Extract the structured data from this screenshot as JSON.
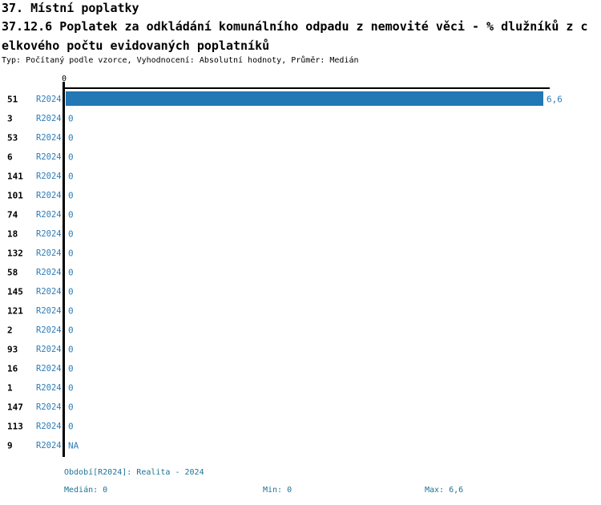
{
  "header": {
    "subtitle_lines": [
      "37.12.6 Poplatek za odkládání komunálního odpadu z nemovité věci - % dlužníků z c",
      "elkového počtu evidovaných poplatníků"
    ]
  },
  "footer": {
    "period_text": "Období[R2024]: Realita - 2024",
    "median_text": "Medián: 0",
    "min_text": "Min: 0",
    "max_text": "Max: 6,6"
  },
  "colors": {
    "bar": "#2277b5",
    "value_text": "#2e7cb8",
    "footer_text": "#1f7396",
    "axis": "#000000"
  },
  "chart_data": {
    "type": "bar",
    "orientation": "horizontal",
    "title": "37. Místní poplatky",
    "subtitle": "37.12.6 Poplatek za odkládání komunálního odpadu z nemovité věci - % dlužníků z celkového počtu evidovaných poplatníků",
    "meta": "Typ: Počítaný podle vzorce, Vyhodnocení: Absolutní hodnoty, Průměr: Medián",
    "categories": [
      "51",
      "3",
      "53",
      "6",
      "141",
      "101",
      "74",
      "18",
      "132",
      "58",
      "145",
      "121",
      "2",
      "93",
      "16",
      "1",
      "147",
      "113",
      "9"
    ],
    "series": [
      {
        "name": "R2024",
        "values": [
          6.6,
          0,
          0,
          0,
          0,
          0,
          0,
          0,
          0,
          0,
          0,
          0,
          0,
          0,
          0,
          0,
          0,
          0,
          null
        ],
        "value_labels": [
          "6,6",
          "0",
          "0",
          "0",
          "0",
          "0",
          "0",
          "0",
          "0",
          "0",
          "0",
          "0",
          "0",
          "0",
          "0",
          "0",
          "0",
          "0",
          "NA"
        ]
      }
    ],
    "xlim": [
      0,
      6.6
    ],
    "x_tick_labels": [
      "0"
    ],
    "grid": false,
    "legend": false,
    "stats": {
      "median": 0,
      "min": 0,
      "max": 6.6
    },
    "period_label": "Období[R2024]: Realita - 2024"
  }
}
